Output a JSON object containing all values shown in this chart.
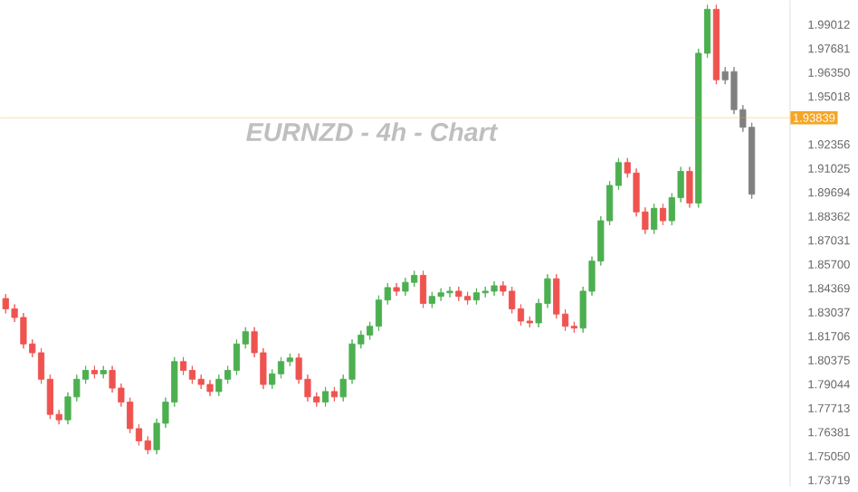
{
  "chart_data": {
    "type": "candlestick",
    "title": "EURNZD - 4h - Chart",
    "categories": [
      null,
      null,
      null,
      null,
      null,
      null,
      null,
      null,
      null,
      null,
      null,
      null,
      null,
      null,
      null,
      null,
      null,
      null,
      null,
      null,
      null,
      null,
      null,
      null,
      null,
      null,
      null,
      null,
      null,
      null,
      null,
      null,
      null,
      null,
      null,
      null,
      null,
      null,
      null,
      null,
      null,
      null,
      null,
      null,
      null,
      null,
      null,
      null,
      null,
      null,
      null,
      null,
      null,
      null,
      null,
      null,
      null,
      null,
      null,
      null,
      null,
      null,
      null,
      null,
      null,
      null,
      null,
      null,
      null,
      null,
      null,
      null,
      null,
      null,
      null,
      null,
      null,
      null,
      null,
      null,
      null,
      null,
      null,
      null,
      null
    ],
    "ohlc": [
      [
        1.838,
        1.8405,
        1.8298,
        1.8323
      ],
      [
        1.8323,
        1.8348,
        1.825,
        1.8275
      ],
      [
        1.8275,
        1.83,
        1.8103,
        1.8128
      ],
      [
        1.8128,
        1.8153,
        1.8054,
        1.8079
      ],
      [
        1.8079,
        1.8104,
        1.7907,
        1.7932
      ],
      [
        1.7932,
        1.7957,
        1.7712,
        1.7737
      ],
      [
        1.7737,
        1.7762,
        1.7682,
        1.7707
      ],
      [
        1.7707,
        1.7859,
        1.7682,
        1.7834
      ],
      [
        1.7834,
        1.7957,
        1.7809,
        1.7932
      ],
      [
        1.7932,
        1.8006,
        1.7907,
        1.7981
      ],
      [
        1.7981,
        1.8006,
        1.7937,
        1.7962
      ],
      [
        1.7962,
        1.8006,
        1.7937,
        1.7981
      ],
      [
        1.7981,
        1.8006,
        1.7858,
        1.7883
      ],
      [
        1.7883,
        1.7908,
        1.778,
        1.7805
      ],
      [
        1.7805,
        1.783,
        1.7633,
        1.7658
      ],
      [
        1.7658,
        1.7683,
        1.7565,
        1.759
      ],
      [
        1.759,
        1.7615,
        1.7516,
        1.7541
      ],
      [
        1.7541,
        1.7713,
        1.7516,
        1.7688
      ],
      [
        1.7688,
        1.783,
        1.7663,
        1.7805
      ],
      [
        1.7805,
        1.8055,
        1.778,
        1.803
      ],
      [
        1.803,
        1.8055,
        1.7956,
        1.7981
      ],
      [
        1.7981,
        1.8006,
        1.7907,
        1.7932
      ],
      [
        1.7932,
        1.7957,
        1.7878,
        1.7903
      ],
      [
        1.7903,
        1.7928,
        1.7839,
        1.7864
      ],
      [
        1.7864,
        1.7957,
        1.7839,
        1.7932
      ],
      [
        1.7932,
        1.8006,
        1.7907,
        1.7981
      ],
      [
        1.7981,
        1.8153,
        1.7956,
        1.8128
      ],
      [
        1.8128,
        1.8221,
        1.8103,
        1.8196
      ],
      [
        1.8196,
        1.8221,
        1.8054,
        1.8079
      ],
      [
        1.8079,
        1.8104,
        1.7878,
        1.7903
      ],
      [
        1.7903,
        1.7987,
        1.7878,
        1.7962
      ],
      [
        1.7962,
        1.8055,
        1.7937,
        1.803
      ],
      [
        1.803,
        1.8075,
        1.8005,
        1.805
      ],
      [
        1.805,
        1.8075,
        1.7907,
        1.7932
      ],
      [
        1.7932,
        1.7957,
        1.7809,
        1.7834
      ],
      [
        1.7834,
        1.7859,
        1.778,
        1.7805
      ],
      [
        1.7805,
        1.7889,
        1.778,
        1.7864
      ],
      [
        1.7864,
        1.7889,
        1.7809,
        1.7834
      ],
      [
        1.7834,
        1.7957,
        1.7809,
        1.7932
      ],
      [
        1.7932,
        1.8153,
        1.7907,
        1.8128
      ],
      [
        1.8128,
        1.8202,
        1.8103,
        1.8177
      ],
      [
        1.8177,
        1.8251,
        1.8152,
        1.8226
      ],
      [
        1.8226,
        1.8397,
        1.8201,
        1.8372
      ],
      [
        1.8372,
        1.8466,
        1.8347,
        1.8441
      ],
      [
        1.8441,
        1.8466,
        1.8396,
        1.8421
      ],
      [
        1.8421,
        1.8495,
        1.8396,
        1.847
      ],
      [
        1.847,
        1.8534,
        1.8445,
        1.8509
      ],
      [
        1.8509,
        1.8534,
        1.8328,
        1.8353
      ],
      [
        1.8353,
        1.8417,
        1.8328,
        1.8392
      ],
      [
        1.8392,
        1.8437,
        1.8367,
        1.8412
      ],
      [
        1.8412,
        1.8446,
        1.8387,
        1.8421
      ],
      [
        1.8421,
        1.8446,
        1.8367,
        1.8392
      ],
      [
        1.8392,
        1.8417,
        1.8347,
        1.8372
      ],
      [
        1.8372,
        1.8437,
        1.8347,
        1.8412
      ],
      [
        1.8412,
        1.8446,
        1.8387,
        1.8421
      ],
      [
        1.8421,
        1.8476,
        1.8396,
        1.8451
      ],
      [
        1.8451,
        1.8476,
        1.8396,
        1.8421
      ],
      [
        1.8421,
        1.8446,
        1.8298,
        1.8323
      ],
      [
        1.8323,
        1.8348,
        1.823,
        1.8255
      ],
      [
        1.8255,
        1.828,
        1.822,
        1.8245
      ],
      [
        1.8245,
        1.8378,
        1.822,
        1.8353
      ],
      [
        1.8353,
        1.8515,
        1.8328,
        1.849
      ],
      [
        1.849,
        1.8515,
        1.8269,
        1.8294
      ],
      [
        1.8294,
        1.8319,
        1.8201,
        1.8226
      ],
      [
        1.8226,
        1.8251,
        1.8191,
        1.8216
      ],
      [
        1.8216,
        1.8446,
        1.8191,
        1.8421
      ],
      [
        1.8421,
        1.8613,
        1.8396,
        1.8588
      ],
      [
        1.8588,
        1.8837,
        1.8563,
        1.8812
      ],
      [
        1.8812,
        1.9033,
        1.8787,
        1.9008
      ],
      [
        1.9008,
        1.916,
        1.8983,
        1.9135
      ],
      [
        1.9135,
        1.916,
        1.9052,
        1.9077
      ],
      [
        1.9077,
        1.9102,
        1.8836,
        1.8861
      ],
      [
        1.8861,
        1.8886,
        1.8739,
        1.8764
      ],
      [
        1.8764,
        1.8906,
        1.8739,
        1.8881
      ],
      [
        1.8881,
        1.8906,
        1.8787,
        1.8812
      ],
      [
        1.8812,
        1.8965,
        1.8787,
        1.894
      ],
      [
        1.894,
        1.9111,
        1.8915,
        1.9086
      ],
      [
        1.9086,
        1.9111,
        1.8885,
        1.891
      ],
      [
        1.891,
        1.9767,
        1.8885,
        1.9742
      ],
      [
        1.9742,
        2.0011,
        1.9717,
        1.9986
      ],
      [
        1.9986,
        2.0011,
        1.957,
        1.9595
      ],
      [
        1.9595,
        1.9665,
        1.957,
        1.964
      ],
      [
        1.964,
        1.9665,
        1.9404,
        1.9429
      ],
      [
        1.9429,
        1.9454,
        1.9306,
        1.9331
      ],
      [
        1.9331,
        1.9356,
        1.8934,
        1.8959
      ]
    ],
    "colors": [
      "#ef5350",
      "#ef5350",
      "#ef5350",
      "#ef5350",
      "#ef5350",
      "#ef5350",
      "#ef5350",
      "#4caf50",
      "#4caf50",
      "#4caf50",
      "#ef5350",
      "#4caf50",
      "#ef5350",
      "#ef5350",
      "#ef5350",
      "#ef5350",
      "#ef5350",
      "#4caf50",
      "#4caf50",
      "#4caf50",
      "#ef5350",
      "#ef5350",
      "#ef5350",
      "#ef5350",
      "#4caf50",
      "#4caf50",
      "#4caf50",
      "#4caf50",
      "#ef5350",
      "#ef5350",
      "#4caf50",
      "#4caf50",
      "#4caf50",
      "#ef5350",
      "#ef5350",
      "#ef5350",
      "#4caf50",
      "#ef5350",
      "#4caf50",
      "#4caf50",
      "#4caf50",
      "#4caf50",
      "#4caf50",
      "#4caf50",
      "#ef5350",
      "#4caf50",
      "#4caf50",
      "#ef5350",
      "#4caf50",
      "#4caf50",
      "#4caf50",
      "#ef5350",
      "#ef5350",
      "#4caf50",
      "#4caf50",
      "#4caf50",
      "#ef5350",
      "#ef5350",
      "#ef5350",
      "#ef5350",
      "#4caf50",
      "#4caf50",
      "#ef5350",
      "#ef5350",
      "#ef5350",
      "#4caf50",
      "#4caf50",
      "#4caf50",
      "#4caf50",
      "#4caf50",
      "#ef5350",
      "#ef5350",
      "#ef5350",
      "#4caf50",
      "#ef5350",
      "#4caf50",
      "#4caf50",
      "#ef5350",
      "#4caf50",
      "#4caf50",
      "#ef5350",
      "#808080",
      "#808080",
      "#808080",
      "#808080"
    ],
    "ylim": [
      1.7336,
      2.0035
    ],
    "yticks": [
      1.99012,
      1.97681,
      {
        "value": 1.9635,
        "label": "1.96350"
      },
      1.95018,
      1.92356,
      1.91025,
      1.89694,
      1.88362,
      1.87031,
      {
        "value": 1.857,
        "label": "1.85700"
      },
      1.84369,
      1.83037,
      1.81706,
      1.80375,
      1.79044,
      1.77713,
      1.76381,
      {
        "value": 1.7505,
        "label": "1.75050"
      },
      1.73719
    ],
    "ref_lines": [
      {
        "axis": "y",
        "value": 1.93839,
        "label": "1.93839",
        "color": "#f5a623"
      }
    ],
    "tick_labels": "y"
  }
}
